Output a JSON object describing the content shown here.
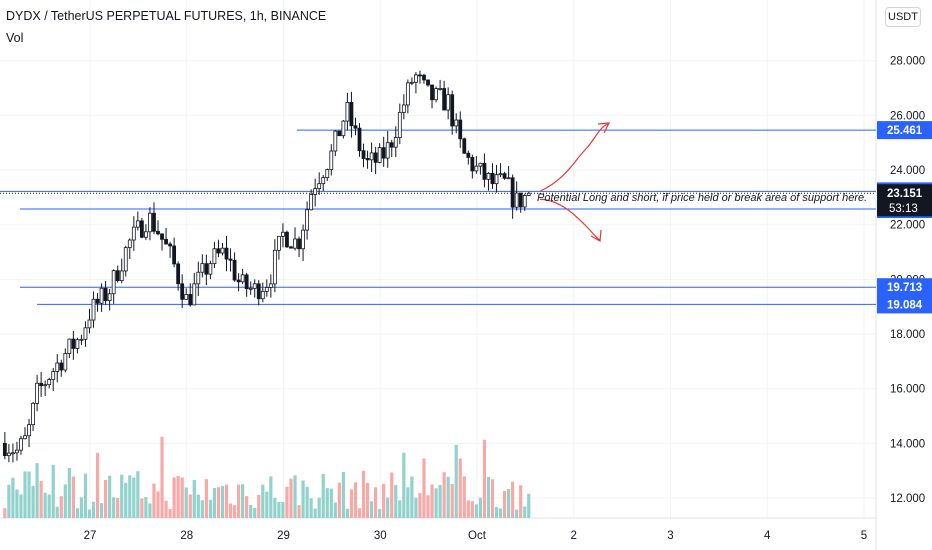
{
  "header": {
    "title": "DYDX / TetherUS PERPETUAL FUTURES, 1h, BINANCE",
    "volume_label": "Vol",
    "currency_button": "USDT"
  },
  "annotation": {
    "text": "Potential Long and short, if price held or break area of support here."
  },
  "colors": {
    "up": "#26a69a",
    "down": "#ef5350",
    "candle_body": "#131722",
    "level_line": "#2962ff",
    "price_tag_bg": "#2962ff",
    "last_price_bg": "#131722",
    "arrows": "#e53935",
    "vol_up": "#92d2cc",
    "vol_down": "#f7a9a7"
  },
  "chart_data": {
    "type": "candlestick",
    "title": "DYDX / TetherUS PERPETUAL FUTURES, 1h, BINANCE",
    "x_labels": [
      "27",
      "28",
      "29",
      "30",
      "Oct",
      "2",
      "3",
      "4",
      "5"
    ],
    "y_ticks": [
      12.0,
      14.0,
      16.0,
      18.0,
      20.0,
      22.0,
      24.0,
      26.0,
      28.0
    ],
    "y_tick_labels": [
      "12.000",
      "14.000",
      "16.000",
      "18.000",
      "20.000",
      "22.000",
      "24.000",
      "26.000",
      "28.000"
    ],
    "ylim": [
      11.3,
      29.4
    ],
    "horizontal_levels": [
      {
        "value": 25.461,
        "label": "25.461"
      },
      {
        "value": 23.219,
        "label": "23.219"
      },
      {
        "value": 22.573,
        "label": "22.573"
      },
      {
        "value": 19.713,
        "label": "19.713"
      },
      {
        "value": 19.084,
        "label": "19.084"
      }
    ],
    "last_price": {
      "value": 23.151,
      "label": "23.151",
      "countdown": "53:13"
    },
    "close_path": [
      {
        "day": 26.12,
        "close": 14.0
      },
      {
        "day": 26.25,
        "close": 13.7
      },
      {
        "day": 26.35,
        "close": 14.2
      },
      {
        "day": 26.45,
        "close": 15.8
      },
      {
        "day": 26.6,
        "close": 16.6
      },
      {
        "day": 26.75,
        "close": 17.3
      },
      {
        "day": 26.9,
        "close": 17.9
      },
      {
        "day": 27.0,
        "close": 18.8
      },
      {
        "day": 27.2,
        "close": 19.6
      },
      {
        "day": 27.4,
        "close": 21.3
      },
      {
        "day": 27.6,
        "close": 22.3
      },
      {
        "day": 27.7,
        "close": 21.8
      },
      {
        "day": 27.85,
        "close": 20.7
      },
      {
        "day": 28.0,
        "close": 19.2
      },
      {
        "day": 28.25,
        "close": 20.7
      },
      {
        "day": 28.4,
        "close": 21.0
      },
      {
        "day": 28.55,
        "close": 19.8
      },
      {
        "day": 28.7,
        "close": 19.6
      },
      {
        "day": 28.85,
        "close": 20.0
      },
      {
        "day": 29.0,
        "close": 21.7
      },
      {
        "day": 29.15,
        "close": 21.3
      },
      {
        "day": 29.3,
        "close": 23.4
      },
      {
        "day": 29.5,
        "close": 24.6
      },
      {
        "day": 29.65,
        "close": 26.2
      },
      {
        "day": 29.85,
        "close": 24.2
      },
      {
        "day": 30.0,
        "close": 24.4
      },
      {
        "day": 30.1,
        "close": 24.9
      },
      {
        "day": 30.25,
        "close": 26.5
      },
      {
        "day": 30.35,
        "close": 27.5
      },
      {
        "day": 30.5,
        "close": 26.7
      },
      {
        "day": 30.7,
        "close": 26.5
      },
      {
        "day": 30.85,
        "close": 24.6
      },
      {
        "day": 31.0,
        "close": 24.0
      },
      {
        "day": 31.15,
        "close": 23.5
      },
      {
        "day": 31.3,
        "close": 23.5
      },
      {
        "day": 31.4,
        "close": 22.8
      },
      {
        "day": 31.55,
        "close": 23.15
      }
    ],
    "grid": true,
    "price_axis": "right"
  }
}
